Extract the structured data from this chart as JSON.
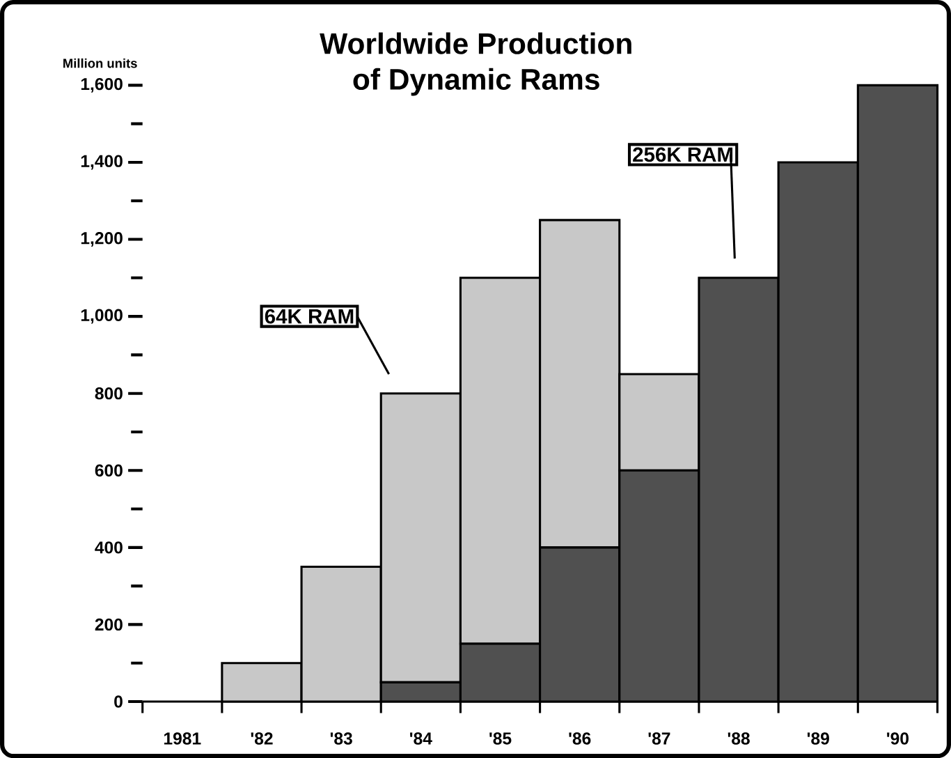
{
  "chart_data": {
    "type": "bar",
    "title": "Worldwide Production\nof Dynamic Rams",
    "ylabel": "Million units",
    "categories": [
      "1981",
      "'82",
      "'83",
      "'84",
      "'85",
      "'86",
      "'87",
      "'88",
      "'89",
      "'90"
    ],
    "series": [
      {
        "name": "256K RAM",
        "color": "#505050",
        "values": [
          0,
          0,
          0,
          50,
          150,
          400,
          600,
          1100,
          1400,
          1600
        ]
      },
      {
        "name": "64K RAM",
        "color": "#c8c8c8",
        "values": [
          0,
          100,
          350,
          750,
          950,
          850,
          250,
          0,
          0,
          0
        ]
      }
    ],
    "stacked": true,
    "ylim": [
      0,
      1600
    ],
    "yticks": [
      0,
      200,
      400,
      600,
      800,
      {
        "value": 1000,
        "label": "1,000"
      },
      {
        "value": 1200,
        "label": "1,200"
      },
      {
        "value": 1400,
        "label": "1,400"
      },
      {
        "value": 1600,
        "label": "1,600"
      }
    ],
    "grid": false,
    "legend": false
  }
}
